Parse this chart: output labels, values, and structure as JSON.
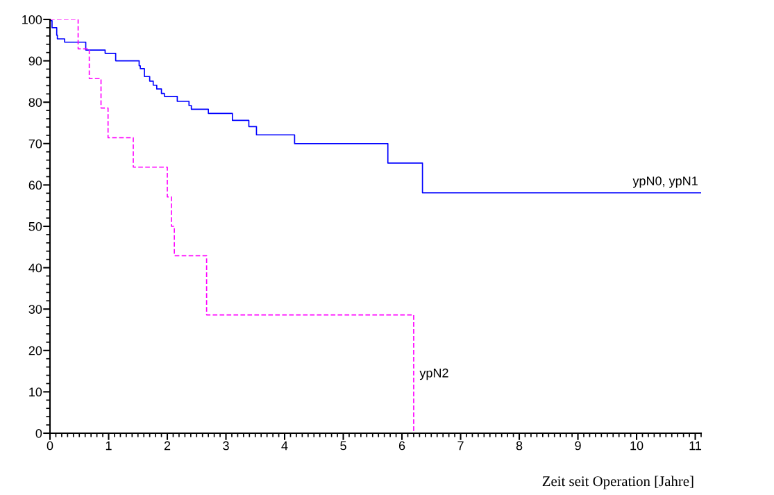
{
  "chart_data": {
    "type": "step",
    "xlabel": "Zeit seit Operation [Jahre]",
    "xlim": [
      0,
      11.1
    ],
    "xticks": [
      0,
      1,
      2,
      3,
      4,
      5,
      6,
      7,
      8,
      9,
      10,
      11
    ],
    "ylim": [
      0,
      100
    ],
    "yticks": [
      0,
      10,
      20,
      30,
      40,
      50,
      60,
      70,
      80,
      90,
      100
    ],
    "grid": false,
    "legend": false,
    "marker": "none",
    "series": [
      {
        "name": "ypN0, ypN1",
        "color": "#0000ff",
        "line_style": "solid",
        "x": [
          0,
          0.01,
          0.035,
          0.115,
          0.126,
          0.25,
          0.61,
          0.94,
          1.12,
          1.52,
          1.54,
          1.61,
          1.7,
          1.76,
          1.82,
          1.9,
          1.95,
          2.17,
          2.37,
          2.41,
          2.7,
          3.11,
          3.39,
          3.52,
          4.17,
          5.76,
          6.35,
          11.1
        ],
        "values": [
          100,
          99.7,
          98,
          96.2,
          95.3,
          94.5,
          92.6,
          91.8,
          90,
          88.8,
          88.1,
          86.2,
          85.1,
          84.1,
          83.2,
          82.1,
          81.4,
          80.2,
          79.2,
          78.3,
          77.3,
          75.6,
          74.1,
          72.1,
          70,
          65.3,
          58.1,
          58.1
        ]
      },
      {
        "name": "ypN2",
        "color": "#ff00ff",
        "line_style": "dashed",
        "x": [
          0,
          0.48,
          0.67,
          0.87,
          0.99,
          1.42,
          2.0,
          2.07,
          2.12,
          2.67,
          6.2,
          11.1
        ],
        "values": [
          100,
          92.9,
          85.7,
          78.6,
          71.4,
          64.3,
          57.1,
          50,
          42.9,
          28.6,
          0,
          0
        ]
      }
    ]
  }
}
